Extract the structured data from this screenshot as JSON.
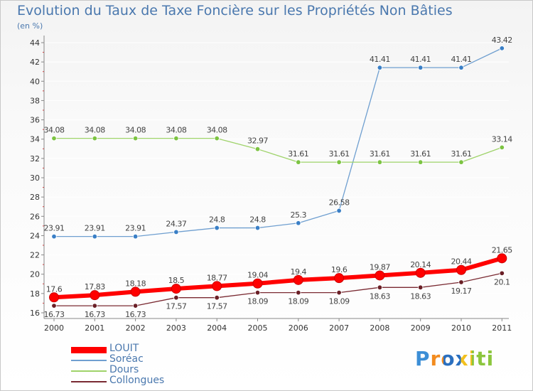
{
  "header": {
    "title": "Evolution du Taux de Taxe Foncière sur les Propriétés Non Bâties",
    "subtitle": "(en %)"
  },
  "logo": {
    "text": "Proxiti"
  },
  "colors": {
    "axis": "#888888",
    "grid": "#ffffff",
    "tick_text": "#333333",
    "label_text": "#444444"
  },
  "chart_data": {
    "type": "line",
    "title": "Evolution du Taux de Taxe Foncière sur les Propriétés Non Bâties",
    "ylabel": "(en %)",
    "xlabel": "",
    "x": [
      "2000",
      "2001",
      "2002",
      "2003",
      "2004",
      "2005",
      "2006",
      "2007",
      "2008",
      "2009",
      "2010",
      "2011"
    ],
    "ylim": [
      16,
      44
    ],
    "yticks": [
      "16",
      "18",
      "20",
      "22",
      "24",
      "26",
      "28",
      "30",
      "32",
      "34",
      "36",
      "38",
      "40",
      "42",
      "44"
    ],
    "legend_position": "bottom-left",
    "series": [
      {
        "name": "LOUIT",
        "color": "#ff0000",
        "marker": "#ff0000",
        "thick": true,
        "values": [
          17.6,
          17.83,
          18.18,
          18.5,
          18.77,
          19.04,
          19.4,
          19.6,
          19.87,
          20.14,
          20.44,
          21.65
        ],
        "labels": [
          "17.6",
          "17.83",
          "18.18",
          "18.5",
          "18.77",
          "19.04",
          "19.4",
          "19.6",
          "19.87",
          "20.14",
          "20.44",
          "21.65"
        ],
        "label_pos": "above"
      },
      {
        "name": "Soréac",
        "color": "#6f9fd0",
        "marker": "#3a7fc6",
        "thick": false,
        "values": [
          23.91,
          23.91,
          23.91,
          24.37,
          24.8,
          24.8,
          25.3,
          26.58,
          41.41,
          41.41,
          41.41,
          43.42
        ],
        "labels": [
          "23.91",
          "23.91",
          "23.91",
          "24.37",
          "24.8",
          "24.8",
          "25.3",
          "26.58",
          "41.41",
          "41.41",
          "41.41",
          "43.42"
        ],
        "label_pos": "above"
      },
      {
        "name": "Dours",
        "color": "#9fd36a",
        "marker": "#7cc342",
        "thick": false,
        "values": [
          34.08,
          34.08,
          34.08,
          34.08,
          34.08,
          32.97,
          31.61,
          31.61,
          31.61,
          31.61,
          31.61,
          33.14
        ],
        "labels": [
          "34.08",
          "34.08",
          "34.08",
          "34.08",
          "34.08",
          "32.97",
          "31.61",
          "31.61",
          "31.61",
          "31.61",
          "31.61",
          "33.14"
        ],
        "label_pos": "above"
      },
      {
        "name": "Collongues",
        "color": "#7a2a32",
        "marker": "#6a1f26",
        "thick": false,
        "values": [
          16.73,
          16.73,
          16.73,
          17.57,
          17.57,
          18.09,
          18.09,
          18.09,
          18.63,
          18.63,
          19.17,
          20.1
        ],
        "labels": [
          "16.73",
          "16.73",
          "16.73",
          "17.57",
          "17.57",
          "18.09",
          "18.09",
          "18.09",
          "18.63",
          "18.63",
          "19.17",
          "20.1"
        ],
        "label_pos": "below"
      }
    ]
  }
}
